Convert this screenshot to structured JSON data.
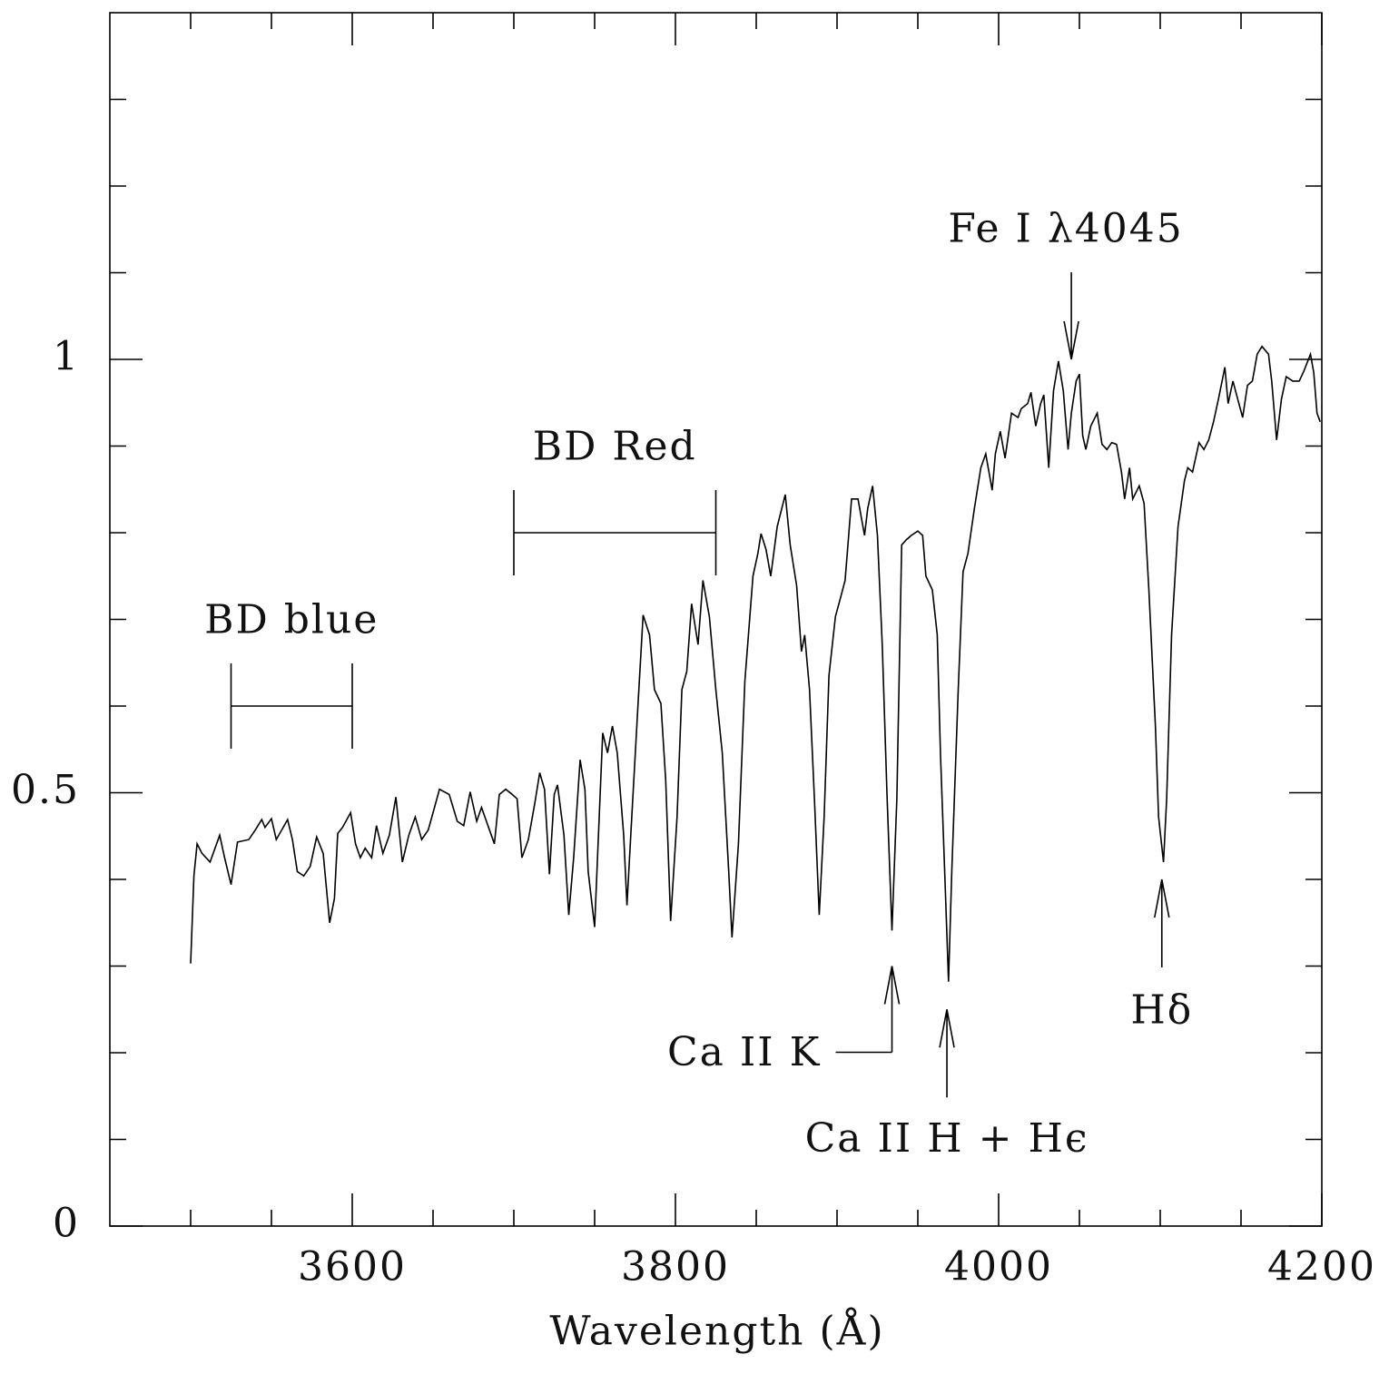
{
  "chart_data": {
    "type": "line",
    "x_label": "Wavelength (Å)",
    "color": "#000000",
    "xlim": [
      3450,
      4200
    ],
    "ylim": [
      0,
      1.4
    ],
    "xticks": [
      3600,
      3800,
      4000,
      4200
    ],
    "xminorticks": [
      3500,
      3550,
      3650,
      3700,
      3750,
      3850,
      3900,
      3950,
      4050,
      4100,
      4150
    ],
    "yticks": [
      0,
      0.5,
      1
    ],
    "yminorticks": [
      0.1,
      0.2,
      0.3,
      0.4,
      0.6,
      0.7,
      0.8,
      0.9,
      1.1,
      1.2,
      1.3
    ],
    "x": [
      3500,
      3502,
      3504,
      3507,
      3512,
      3518,
      3521,
      3525,
      3529,
      3536,
      3540,
      3544,
      3546,
      3550,
      3553,
      3560,
      3563,
      3566,
      3570,
      3574,
      3578,
      3582,
      3586,
      3589,
      3591,
      3594,
      3599,
      3602,
      3605,
      3608,
      3612,
      3615,
      3619,
      3623,
      3627,
      3631,
      3635,
      3639,
      3643,
      3647,
      3650,
      3654,
      3660,
      3665,
      3669,
      3673,
      3677,
      3680,
      3684,
      3688,
      3691,
      3695,
      3699,
      3702,
      3705,
      3709,
      3713,
      3716,
      3719,
      3722,
      3725,
      3727,
      3731,
      3734,
      3737,
      3741,
      3744,
      3746,
      3750,
      3752,
      3755,
      3758,
      3761,
      3764,
      3768,
      3770,
      3773,
      3777,
      3780,
      3784,
      3787,
      3791,
      3794,
      3797,
      3801,
      3804,
      3807,
      3810,
      3814,
      3817,
      3821,
      3825,
      3829,
      3833,
      3835,
      3839,
      3843,
      3848,
      3851,
      3853,
      3856,
      3859,
      3863,
      3868,
      3871,
      3875,
      3878,
      3880,
      3883,
      3886,
      3889,
      3892,
      3895,
      3899,
      3902,
      3905,
      3909,
      3913,
      3917,
      3919,
      3922,
      3925,
      3928,
      3931,
      3934,
      3937,
      3940,
      3943,
      3946,
      3950,
      3953,
      3955,
      3959,
      3962,
      3964,
      3967,
      3969,
      3971,
      3975,
      3978,
      3981,
      3985,
      3989,
      3992,
      3996,
      3998,
      4001,
      4004,
      4008,
      4012,
      4014,
      4018,
      4020,
      4023,
      4026,
      4028,
      4031,
      4034,
      4037,
      4040,
      4043,
      4045,
      4048,
      4050,
      4052,
      4054,
      4057,
      4061,
      4064,
      4067,
      4070,
      4073,
      4076,
      4078,
      4081,
      4083,
      4087,
      4090,
      4093,
      4097,
      4099,
      4102,
      4104,
      4107,
      4111,
      4115,
      4117,
      4120,
      4124,
      4127,
      4130,
      4133,
      4136,
      4140,
      4142,
      4145,
      4148,
      4151,
      4154,
      4157,
      4160,
      4163,
      4167,
      4169,
      4172,
      4175,
      4178,
      4182,
      4186,
      4189,
      4193,
      4195,
      4197,
      4199
    ],
    "values": [
      0.303,
      0.404,
      0.441,
      0.43,
      0.42,
      0.451,
      0.425,
      0.394,
      0.443,
      0.446,
      0.457,
      0.469,
      0.46,
      0.47,
      0.446,
      0.469,
      0.446,
      0.409,
      0.404,
      0.415,
      0.449,
      0.43,
      0.35,
      0.378,
      0.453,
      0.46,
      0.477,
      0.441,
      0.425,
      0.436,
      0.425,
      0.462,
      0.43,
      0.451,
      0.495,
      0.42,
      0.451,
      0.472,
      0.446,
      0.457,
      0.477,
      0.504,
      0.498,
      0.467,
      0.462,
      0.501,
      0.467,
      0.483,
      0.462,
      0.441,
      0.498,
      0.504,
      0.498,
      0.493,
      0.425,
      0.446,
      0.488,
      0.523,
      0.504,
      0.406,
      0.498,
      0.509,
      0.451,
      0.359,
      0.425,
      0.538,
      0.504,
      0.409,
      0.345,
      0.436,
      0.569,
      0.546,
      0.577,
      0.546,
      0.451,
      0.37,
      0.472,
      0.608,
      0.705,
      0.682,
      0.619,
      0.603,
      0.514,
      0.352,
      0.472,
      0.619,
      0.64,
      0.718,
      0.671,
      0.745,
      0.703,
      0.619,
      0.546,
      0.409,
      0.333,
      0.441,
      0.629,
      0.75,
      0.776,
      0.799,
      0.781,
      0.75,
      0.807,
      0.844,
      0.786,
      0.739,
      0.663,
      0.682,
      0.619,
      0.493,
      0.359,
      0.472,
      0.635,
      0.703,
      0.724,
      0.745,
      0.839,
      0.839,
      0.797,
      0.828,
      0.854,
      0.797,
      0.671,
      0.493,
      0.341,
      0.493,
      0.786,
      0.792,
      0.797,
      0.802,
      0.797,
      0.75,
      0.734,
      0.682,
      0.546,
      0.388,
      0.282,
      0.409,
      0.619,
      0.755,
      0.776,
      0.828,
      0.875,
      0.891,
      0.849,
      0.891,
      0.917,
      0.886,
      0.938,
      0.933,
      0.943,
      0.949,
      0.962,
      0.923,
      0.949,
      0.959,
      0.875,
      0.964,
      0.998,
      0.964,
      0.896,
      0.938,
      0.975,
      0.983,
      0.912,
      0.896,
      0.923,
      0.938,
      0.902,
      0.896,
      0.904,
      0.902,
      0.87,
      0.839,
      0.875,
      0.839,
      0.854,
      0.834,
      0.734,
      0.577,
      0.472,
      0.42,
      0.493,
      0.682,
      0.807,
      0.86,
      0.875,
      0.87,
      0.904,
      0.896,
      0.907,
      0.928,
      0.954,
      0.991,
      0.949,
      0.975,
      0.954,
      0.933,
      0.97,
      0.975,
      1.006,
      1.015,
      1.006,
      0.975,
      0.907,
      0.954,
      0.98,
      0.975,
      0.975,
      0.987,
      1.006,
      0.985,
      0.938,
      0.928
    ],
    "annotations": [
      {
        "text": "BD blue",
        "range": [
          3525,
          3600
        ],
        "y": 0.6
      },
      {
        "text": "BD Red",
        "range": [
          3700,
          3825
        ],
        "y": 0.8
      },
      {
        "text": "Fe I λ4045",
        "x": 4045,
        "y": 1.0
      },
      {
        "text": "Ca II K",
        "x": 3934,
        "y": 0.3
      },
      {
        "text": "Ca II H + Hϵ",
        "x": 3968,
        "y": 0.25
      },
      {
        "text": "Hδ",
        "x": 4101,
        "y": 0.4
      }
    ]
  }
}
